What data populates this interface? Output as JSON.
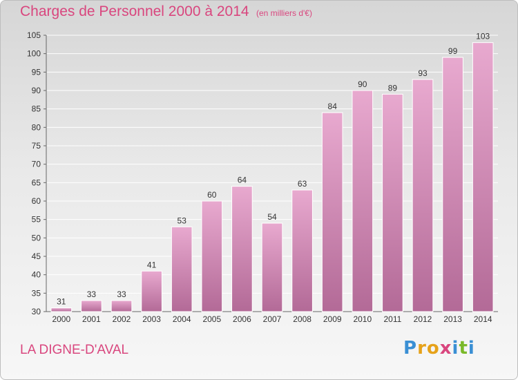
{
  "title": "Charges de Personnel 2000 à 2014",
  "subtitle": "(en milliers d'€)",
  "commune": "LA DIGNE-D'AVAL",
  "logo": {
    "letters": [
      "P",
      "r",
      "o",
      "x",
      "i",
      "t",
      "i"
    ],
    "colors": [
      "#3a8fd4",
      "#e6a21a",
      "#e6a21a",
      "#d9467e",
      "#3a8fd4",
      "#7ab929",
      "#3a8fd4"
    ]
  },
  "colors": {
    "title": "#d9467e",
    "bar_light": "#e8a9cf",
    "bar_dark": "#b36a97"
  },
  "chart_data": {
    "type": "bar",
    "categories": [
      "2000",
      "2001",
      "2002",
      "2003",
      "2004",
      "2005",
      "2006",
      "2007",
      "2008",
      "2009",
      "2010",
      "2011",
      "2012",
      "2013",
      "2014"
    ],
    "values": [
      31,
      33,
      33,
      41,
      53,
      60,
      64,
      54,
      63,
      84,
      90,
      89,
      93,
      99,
      103
    ],
    "title": "Charges de Personnel 2000 à 2014",
    "ylim": [
      30,
      105
    ],
    "yticks": [
      30,
      35,
      40,
      45,
      50,
      55,
      60,
      65,
      70,
      75,
      80,
      85,
      90,
      95,
      100,
      105
    ],
    "grid": true
  }
}
